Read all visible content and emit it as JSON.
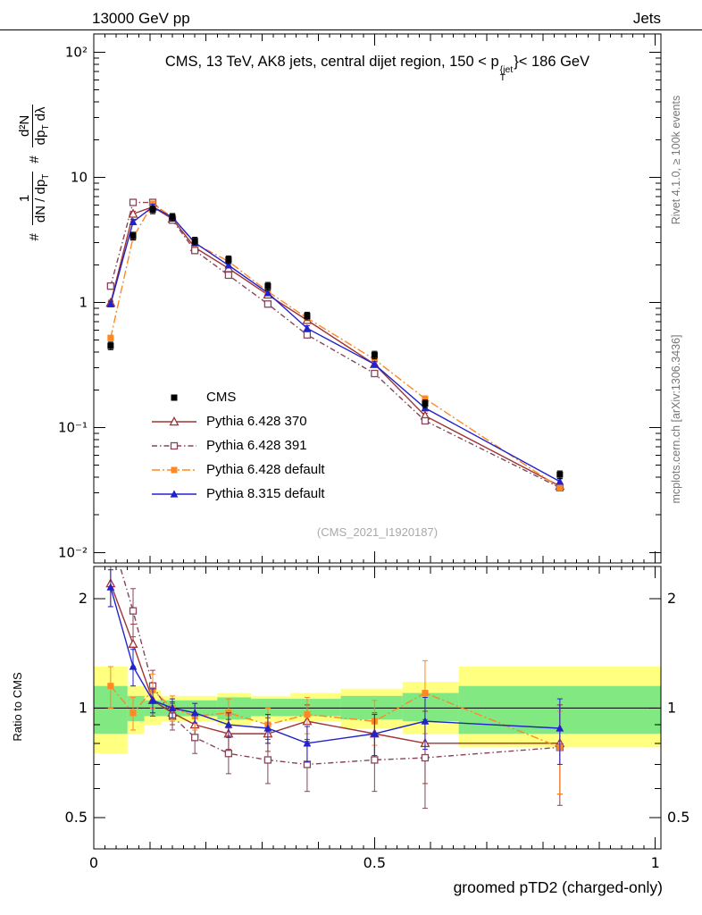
{
  "header": {
    "left": "13000 GeV pp",
    "right": "Jets"
  },
  "title": {
    "pre": "CMS, 13 TeV, AK8 jets, central dijet region, 150 < p",
    "sup": "{jet",
    "sub": "T",
    "post": "}< 186 GeV"
  },
  "ylabel": {
    "h1": "#",
    "f1num": "1",
    "f1den": "dN / dp",
    "f1densub": "T",
    "h2": "#",
    "f2num": "d²N",
    "f2den_a": "dp",
    "f2den_a_sub": "T",
    "f2den_b": " dλ"
  },
  "ratio_ylabel": "Ratio to CMS",
  "xlabel": "groomed pTD2 (charged-only)",
  "watermark": "(CMS_2021_I1920187)",
  "side_notes": {
    "right_top": "Rivet 4.1.0, ≥ 100k events",
    "right_bottom": "mcplots.cern.ch [arXiv:1306.3436]"
  },
  "chart_data": {
    "type": "line",
    "title": "CMS, 13 TeV, AK8 jets, central dijet region, 150 < pT(jet) < 186 GeV",
    "xlabel": "groomed pTD2 (charged-only)",
    "ylabel": "# 1/(dN/dpT) d²N/(dpT dλ)",
    "ratio_label": "Ratio to CMS",
    "x": [
      0.03,
      0.07,
      0.105,
      0.14,
      0.18,
      0.24,
      0.31,
      0.38,
      0.5,
      0.59,
      0.83
    ],
    "x_axis": {
      "ticks": [
        "0",
        "0.5",
        "1"
      ],
      "tick_values": [
        0,
        0.5,
        1
      ],
      "range": [
        0,
        1.01
      ]
    },
    "main_axis": {
      "scale": "log",
      "ticks": [
        "10²",
        "10",
        "1",
        "10⁻¹",
        "10⁻²"
      ],
      "tick_values": [
        100,
        10,
        1,
        0.1,
        0.01
      ],
      "range": [
        0.00826,
        140
      ]
    },
    "ratio_axis": {
      "scale": "log",
      "ticks": [
        "2",
        "1",
        "0.5"
      ],
      "tick_values": [
        2,
        1,
        0.5
      ],
      "minor_ticks": [
        0.6,
        0.7,
        0.8,
        0.9
      ],
      "range": [
        0.41,
        2.45
      ]
    },
    "series": [
      {
        "label": "CMS",
        "color": "#000000",
        "line": "none",
        "marker": "square-filled",
        "main_err_frac": 0.07,
        "values": [
          0.45,
          3.4,
          5.5,
          4.8,
          3.1,
          2.2,
          1.35,
          0.78,
          0.38,
          0.155,
          0.042
        ],
        "ratio": null
      },
      {
        "label": "Pythia 6.428 370",
        "color": "#a03333",
        "line": "solid",
        "marker": "triangle-open",
        "main_err_frac": 0.05,
        "values": [
          0.99,
          5.1,
          5.8,
          4.65,
          2.75,
          1.87,
          1.15,
          0.72,
          0.32,
          0.124,
          0.034
        ],
        "ratio": [
          2.2,
          1.5,
          1.05,
          0.97,
          0.9,
          0.85,
          0.85,
          0.92,
          0.85,
          0.8,
          0.8
        ],
        "ratio_err": [
          0.3,
          0.2,
          0.1,
          0.07,
          0.07,
          0.08,
          0.09,
          0.1,
          0.12,
          0.18,
          0.22
        ]
      },
      {
        "label": "Pythia 6.428 391",
        "color": "#85455a",
        "line": "dashdotfine",
        "marker": "square-open",
        "main_err_frac": 0.05,
        "values": [
          1.35,
          6.3,
          6.3,
          4.55,
          2.6,
          1.65,
          0.97,
          0.55,
          0.27,
          0.113,
          0.033
        ],
        "ratio": [
          3.0,
          1.85,
          1.15,
          0.95,
          0.83,
          0.75,
          0.72,
          0.7,
          0.72,
          0.73,
          0.78
        ],
        "ratio_err": [
          0.5,
          0.28,
          0.12,
          0.08,
          0.08,
          0.09,
          0.1,
          0.11,
          0.13,
          0.2,
          0.24
        ]
      },
      {
        "label": "Pythia 6.428 default",
        "color": "#ff8820",
        "line": "dashdot",
        "marker": "square-filled",
        "main_err_frac": 0.05,
        "values": [
          0.52,
          3.3,
          6.15,
          4.8,
          2.95,
          2.13,
          1.22,
          0.75,
          0.35,
          0.17,
          0.033
        ],
        "ratio": [
          1.15,
          0.97,
          1.12,
          1.0,
          0.95,
          0.97,
          0.9,
          0.96,
          0.92,
          1.1,
          0.78
        ],
        "ratio_err": [
          0.15,
          0.1,
          0.12,
          0.08,
          0.08,
          0.09,
          0.1,
          0.11,
          0.13,
          0.25,
          0.2
        ]
      },
      {
        "label": "Pythia 8.315 default",
        "color": "#2222cc",
        "line": "solid",
        "marker": "triangle-filled",
        "main_err_frac": 0.05,
        "values": [
          0.97,
          4.4,
          5.8,
          4.8,
          3.0,
          1.98,
          1.19,
          0.62,
          0.32,
          0.143,
          0.037
        ],
        "ratio": [
          2.15,
          1.3,
          1.05,
          1.0,
          0.97,
          0.9,
          0.88,
          0.8,
          0.85,
          0.92,
          0.88
        ],
        "ratio_err": [
          0.25,
          0.15,
          0.08,
          0.06,
          0.06,
          0.07,
          0.08,
          0.09,
          0.11,
          0.15,
          0.18
        ]
      }
    ],
    "bands": {
      "yellow_color": "#ffff80",
      "green_color": "#82e882",
      "yellow": [
        [
          0.0,
          0.06,
          0.75,
          1.3
        ],
        [
          0.06,
          0.09,
          0.85,
          1.15
        ],
        [
          0.09,
          0.12,
          0.9,
          1.12
        ],
        [
          0.12,
          0.22,
          0.92,
          1.08
        ],
        [
          0.22,
          0.28,
          0.9,
          1.1
        ],
        [
          0.28,
          0.35,
          0.92,
          1.08
        ],
        [
          0.35,
          0.44,
          0.92,
          1.1
        ],
        [
          0.44,
          0.55,
          0.88,
          1.13
        ],
        [
          0.55,
          0.65,
          0.85,
          1.18
        ],
        [
          0.65,
          1.01,
          0.78,
          1.3
        ]
      ],
      "green": [
        [
          0.0,
          0.06,
          0.85,
          1.15
        ],
        [
          0.06,
          0.09,
          0.92,
          1.08
        ],
        [
          0.09,
          0.22,
          0.95,
          1.05
        ],
        [
          0.22,
          0.28,
          0.93,
          1.07
        ],
        [
          0.28,
          0.44,
          0.95,
          1.06
        ],
        [
          0.44,
          0.55,
          0.93,
          1.08
        ],
        [
          0.55,
          0.65,
          0.92,
          1.1
        ],
        [
          0.65,
          1.01,
          0.85,
          1.15
        ]
      ]
    },
    "legend_position": "inside-left-middle",
    "grid": false
  }
}
